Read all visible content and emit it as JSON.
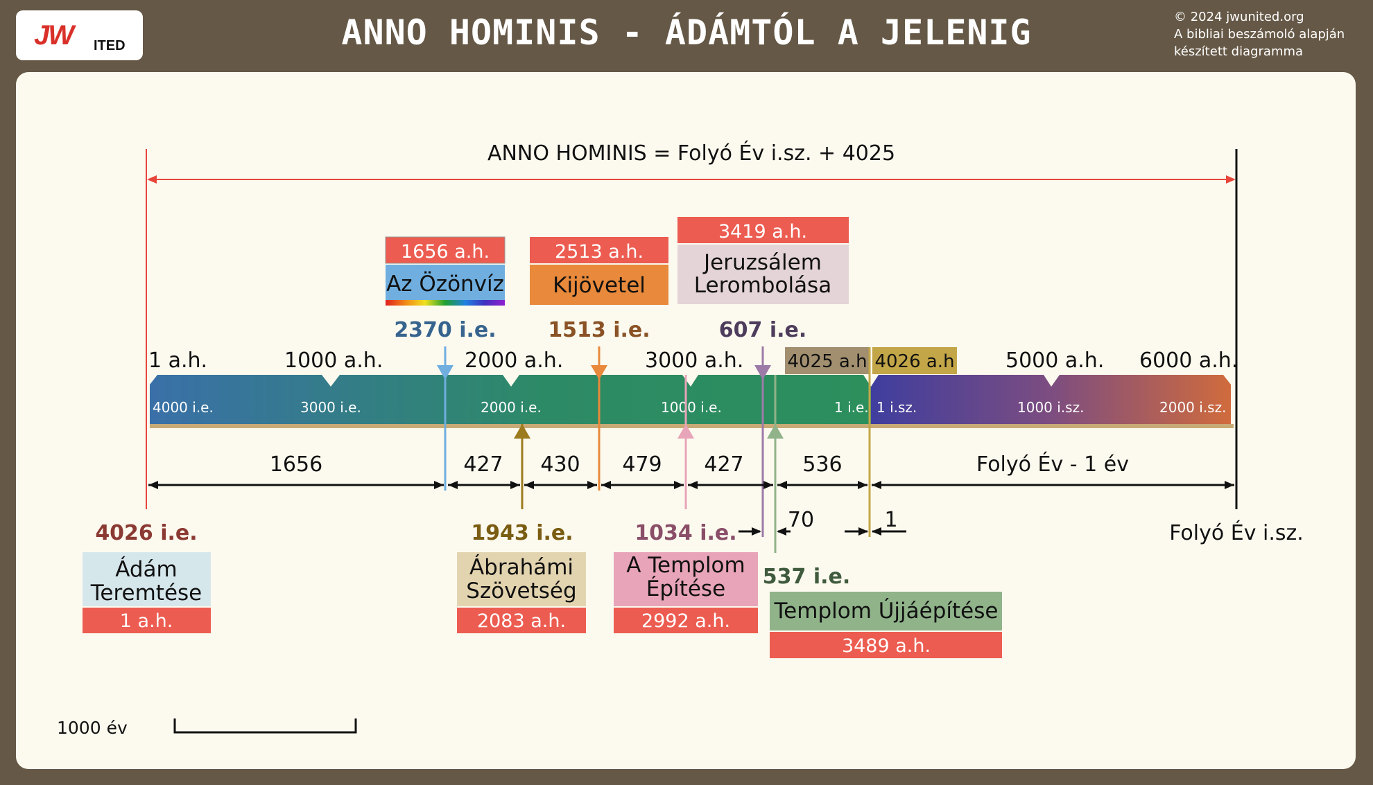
{
  "header": {
    "logo_j": "JW",
    "logo_sub": "ITED",
    "title": "ANNO HOMINIS - ÁDÁMTÓL A JELENIG",
    "copyright": [
      "© 2024 jwunited.org",
      "A bibliai beszámoló alapján",
      "készített diagramma"
    ]
  },
  "formula": "ANNO HOMINIS = Folyó Év i.sz. + 4025",
  "ah_ticks": [
    "1 a.h.",
    "1000 a.h.",
    "2000 a.h.",
    "3000 a.h.",
    "5000 a.h.",
    "6000 a.h."
  ],
  "badges": {
    "ah4025": "4025 a.h",
    "ah4026": "4026 a.h"
  },
  "band_labels": [
    "4000 i.e.",
    "3000 i.e.",
    "2000 i.e.",
    "1000 i.e.",
    "1 i.e.",
    "1 i.sz.",
    "1000 i.sz.",
    "2000 i.sz."
  ],
  "top_events": [
    {
      "ah": "1656 a.h.",
      "name": "Az Özönvíz",
      "date": "2370 i.e."
    },
    {
      "ah": "2513 a.h.",
      "name": "Kijövetel",
      "date": "1513 i.e."
    },
    {
      "ah": "3419 a.h.",
      "name": [
        "Jeruzsálem",
        "Lerombolása"
      ],
      "date": "607 i.e."
    }
  ],
  "intervals": [
    "1656",
    "427",
    "430",
    "479",
    "427",
    "536",
    "Folyó Év - 1 év"
  ],
  "small_intervals": [
    "70",
    "1"
  ],
  "bottom_events": [
    {
      "date": "4026 i.e.",
      "name": [
        "Ádám",
        "Teremtése"
      ],
      "ah": "1 a.h."
    },
    {
      "date": "1943 i.e.",
      "name": [
        "Ábrahámi",
        "Szövetség"
      ],
      "ah": "2083 a.h."
    },
    {
      "date": "1034 i.e.",
      "name": [
        "A Templom",
        "Építése"
      ],
      "ah": "2992 a.h."
    },
    {
      "date": "537 i.e.",
      "name": [
        "Templom Újjáépítése"
      ],
      "ah": "3489 a.h."
    }
  ],
  "present_label": "Folyó Év i.sz.",
  "scale_label": "1000 év",
  "colors": {
    "red": "#ec5c50",
    "flood": "#6faedf",
    "exodus": "#e8893b",
    "jerusalem": "#e4d4d8",
    "adam": "#d6e7ec",
    "abraham": "#e3d4b0",
    "temple": "#e8a4b8",
    "rebuild": "#90b38a",
    "badge4025": "#a28f6f",
    "badge4026": "#c3a648"
  }
}
